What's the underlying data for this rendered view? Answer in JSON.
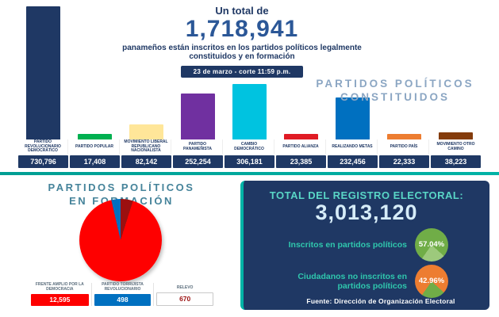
{
  "header": {
    "intro": "Un total de",
    "total": "1,718,941",
    "subtitle": "panameños están inscritos en los partidos políticos legalmente constituidos y en formación",
    "date_badge": "23 de marzo - corte 11:59 p.m."
  },
  "constituted_title": {
    "line1": "PARTIDOS POLÍTICOS",
    "line2": "CONSTITUIDOS"
  },
  "formation_title": {
    "line1": "PARTIDOS POLÍTICOS",
    "line2": "EN FORMACIÓN"
  },
  "chart_data": [
    {
      "type": "bar",
      "title": "PARTIDOS POLÍTICOS CONSTITUIDOS",
      "categories": [
        "PARTIDO REVOLUCIONARIO DEMOCRÁTICO",
        "PARTIDO POPULAR",
        "MOVIMIENTO LIBERAL REPUBLICANO NACIONALISTA",
        "PARTIDO PANAMEÑISTA",
        "CAMBIO DEMOCRÁTICO",
        "PARTIDO ALIANZA",
        "REALIZANDO METAS",
        "PARTIDO PAÍS",
        "MOVIMIENTO OTRO CAMINO"
      ],
      "values": [
        730796,
        17408,
        82142,
        252254,
        306181,
        23385,
        232456,
        22333,
        38223
      ],
      "value_labels": [
        "730,796",
        "17,408",
        "82,142",
        "252,254",
        "306,181",
        "23,385",
        "232,456",
        "22,333",
        "38,223"
      ],
      "colors": [
        "#1f3864",
        "#00b050",
        "#ffe699",
        "#7030a0",
        "#00c3e0",
        "#e01b24",
        "#0070c0",
        "#ed7d31",
        "#843c0c"
      ],
      "value_box_color": "#1f3864",
      "ylim": [
        0,
        730796
      ],
      "grid": false,
      "legend_position": "none"
    },
    {
      "type": "pie",
      "title": "PARTIDOS POLÍTICOS EN FORMACIÓN",
      "categories": [
        "FRENTE AMPLIO POR LA DEMOCRACIA",
        "PARTIDO TORRIJISTA REVOLUCIONARIO",
        "RELEVO"
      ],
      "values": [
        12595,
        498,
        670
      ],
      "value_labels": [
        "12,595",
        "498",
        "670"
      ],
      "colors": [
        "#fe0000",
        "#0070c0",
        "#9b1010"
      ],
      "legend_position": "bottom"
    }
  ],
  "registry": {
    "title": "TOTAL DEL REGISTRO ELECTORAL:",
    "total": "3,013,120",
    "rows": [
      {
        "label": "Inscritos en partidos políticos",
        "pct": "57.04%",
        "color": "#70ad47",
        "color2": "#9dc97c"
      },
      {
        "label": "Ciudadanos no inscritos en partidos políticos",
        "pct": "42.96%",
        "color": "#ed7d31",
        "color2": "#70ad47"
      }
    ],
    "source": "Fuente: Dirección de Organización Electoral"
  },
  "colors": {
    "navy": "#1f3864",
    "teal_divider": "#009e93",
    "accent_blue": "#2b5797"
  }
}
